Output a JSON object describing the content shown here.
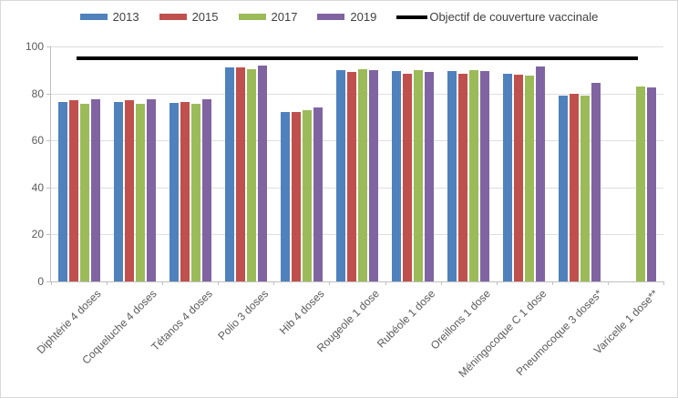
{
  "chart_data": {
    "type": "bar",
    "title": "",
    "categories": [
      "Diphtérie 4 doses",
      "Coqueluche 4 doses",
      "Tétanos 4 doses",
      "Polio 3 doses",
      "Hib 4 doses",
      "Rougeole 1 dose",
      "Rubéole 1 dose",
      "Oreillons 1 dose",
      "Méningocoque C 1 dose",
      "Pneumocoque 3 doses*",
      "Varicelle 1 dose**"
    ],
    "series": [
      {
        "name": "2013",
        "color": "#4F81BD",
        "values": [
          76.5,
          76.5,
          76,
          91,
          72,
          90,
          89.5,
          89.5,
          88.5,
          79,
          null
        ]
      },
      {
        "name": "2015",
        "color": "#C0504D",
        "values": [
          77,
          77,
          76.5,
          91,
          72,
          89,
          88.5,
          88.5,
          88,
          80,
          null
        ]
      },
      {
        "name": "2017",
        "color": "#9BBB59",
        "values": [
          75.5,
          75.5,
          75.5,
          90.5,
          73,
          90.5,
          90,
          90,
          87.5,
          79,
          83
        ]
      },
      {
        "name": "2019",
        "color": "#8064A2",
        "values": [
          77.5,
          77.5,
          77.5,
          92,
          74,
          90,
          89,
          89.5,
          91.5,
          84.5,
          82.5
        ]
      }
    ],
    "reference_line": {
      "label": "Objectif de couverture vaccinale",
      "value": 95,
      "color": "#000000"
    },
    "xlabel": "",
    "ylabel": "",
    "ylim": [
      0,
      100
    ],
    "yticks": [
      0,
      20,
      40,
      60,
      80,
      100
    ],
    "grid": true,
    "legend_position": "top",
    "axis_text_color": "#595959",
    "legend_text_color": "#3f3f3f"
  }
}
